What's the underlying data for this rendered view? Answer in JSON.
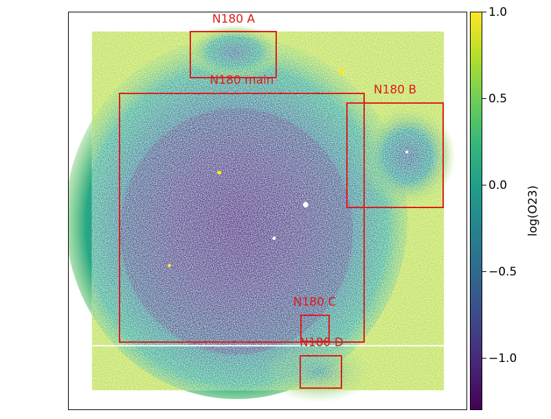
{
  "image": {
    "description_colors": {
      "dark": "#440154",
      "mid": "#21918c",
      "light": "#fde725",
      "box": "#e01a1a"
    }
  },
  "regions": [
    {
      "label": "N180 A"
    },
    {
      "label": "N180 main"
    },
    {
      "label": "N180 B"
    },
    {
      "label": "N180 C"
    },
    {
      "label": "N180 D"
    }
  ],
  "colorbar": {
    "label": "log(O23)",
    "ticks": [
      "1.0",
      "0.5",
      "0.0",
      "−0.5",
      "−1.0"
    ]
  }
}
